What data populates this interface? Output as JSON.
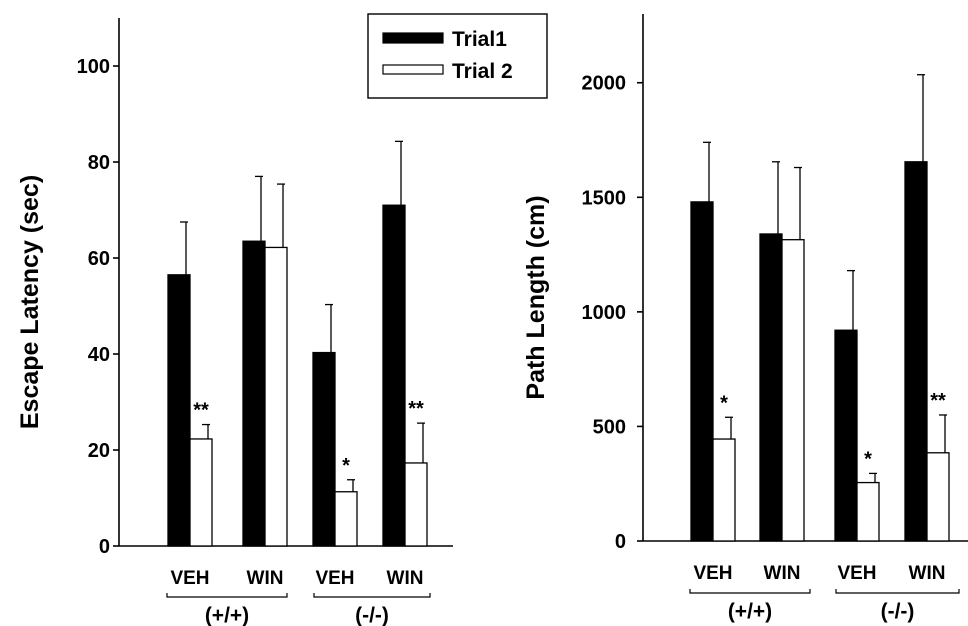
{
  "legend": [
    {
      "label": "Trial1",
      "fill": "#000000"
    },
    {
      "label": "Trial 2",
      "fill": "#ffffff"
    }
  ],
  "chart_data": [
    {
      "type": "bar",
      "ylabel": "Escape Latency (sec)",
      "ylim": [
        0,
        110
      ],
      "yticks": [
        0,
        20,
        40,
        60,
        80,
        100
      ],
      "categories": [
        "VEH",
        "WIN",
        "VEH",
        "WIN"
      ],
      "groups": [
        {
          "label": "(+/+)",
          "categories": [
            0,
            1
          ]
        },
        {
          "label": "(-/-)",
          "categories": [
            2,
            3
          ]
        }
      ],
      "series": [
        {
          "name": "Trial1",
          "values": [
            56.5,
            63.5,
            40.3,
            71.0
          ],
          "errors": [
            11.0,
            13.5,
            10.0,
            13.3
          ]
        },
        {
          "name": "Trial 2",
          "values": [
            22.3,
            62.2,
            11.3,
            17.3
          ],
          "errors": [
            3.0,
            13.2,
            2.5,
            8.3
          ]
        }
      ],
      "annotations": [
        {
          "category": 0,
          "series": 1,
          "text": "**"
        },
        {
          "category": 2,
          "series": 1,
          "text": "*"
        },
        {
          "category": 3,
          "series": 1,
          "text": "**"
        }
      ]
    },
    {
      "type": "bar",
      "ylabel": "Path Length (cm)",
      "ylim": [
        0,
        2300
      ],
      "yticks": [
        0,
        500,
        1000,
        1500,
        2000
      ],
      "categories": [
        "VEH",
        "WIN",
        "VEH",
        "WIN"
      ],
      "groups": [
        {
          "label": "(+/+)",
          "categories": [
            0,
            1
          ]
        },
        {
          "label": "(-/-)",
          "categories": [
            2,
            3
          ]
        }
      ],
      "series": [
        {
          "name": "Trial1",
          "values": [
            1480,
            1340,
            920,
            1655
          ],
          "errors": [
            260,
            315,
            260,
            380
          ]
        },
        {
          "name": "Trial 2",
          "values": [
            445,
            1315,
            255,
            385
          ],
          "errors": [
            95,
            315,
            40,
            165
          ]
        }
      ],
      "annotations": [
        {
          "category": 0,
          "series": 1,
          "text": "*"
        },
        {
          "category": 2,
          "series": 1,
          "text": "*"
        },
        {
          "category": 3,
          "series": 1,
          "text": "**"
        }
      ]
    }
  ]
}
